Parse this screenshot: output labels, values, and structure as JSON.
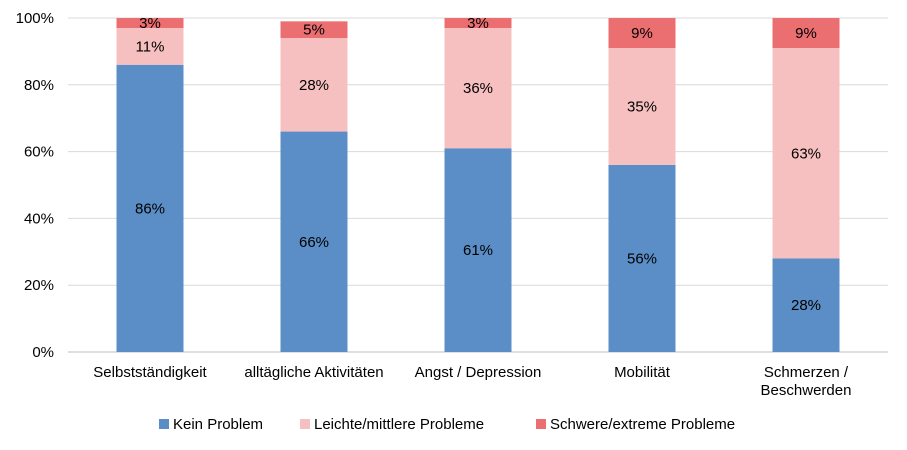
{
  "chart_data": {
    "type": "bar",
    "stacked": true,
    "percent": true,
    "categories": [
      [
        "Selbstständigkeit"
      ],
      [
        "alltägliche Aktivitäten"
      ],
      [
        "Angst / Depression"
      ],
      [
        "Mobilität"
      ],
      [
        "Schmerzen /",
        "Beschwerden"
      ]
    ],
    "series": [
      {
        "name": "Kein Problem",
        "color": "#5B8DC6",
        "values": [
          86,
          66,
          61,
          56,
          28
        ]
      },
      {
        "name": "Leichte/mittlere Probleme",
        "color": "#F7C0C0",
        "values": [
          11,
          28,
          36,
          35,
          63
        ]
      },
      {
        "name": "Schwere/extreme Probleme",
        "color": "#EB6E71",
        "values": [
          3,
          5,
          3,
          9,
          9
        ]
      }
    ],
    "data_labels": [
      [
        "86%",
        "66%",
        "61%",
        "56%",
        "28%"
      ],
      [
        "11%",
        "28%",
        "36%",
        "35%",
        "63%"
      ],
      [
        "3%",
        "5%",
        "3%",
        "9%",
        "9%"
      ]
    ],
    "ylim": [
      0,
      100
    ],
    "yticks": [
      "0%",
      "20%",
      "40%",
      "60%",
      "80%",
      "100%"
    ],
    "grid": true,
    "legend_position": "bottom"
  }
}
